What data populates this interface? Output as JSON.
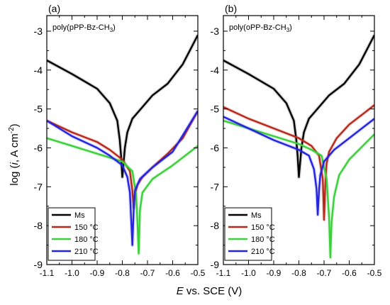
{
  "figure": {
    "y_axis_label": {
      "prefix": "log (",
      "italic": "i",
      "middle": ", A cm",
      "sup": "-2",
      "suffix": ")"
    },
    "x_axis_label": {
      "italic": "E",
      "rest": " vs. SCE (V)"
    }
  },
  "chart_data": [
    {
      "type": "line",
      "panel_label": "(a)",
      "title": {
        "prefix": "poly(pPP-Bz-CH",
        "sub": "3",
        "suffix": ")"
      },
      "xlim": [
        -1.1,
        -0.5
      ],
      "ylim": [
        -9,
        -2.6
      ],
      "x_ticks": [
        -1.1,
        -1.0,
        -0.9,
        -0.8,
        -0.7,
        -0.6,
        -0.5
      ],
      "x_tick_labels": [
        "-1.1",
        "-1.0",
        "-0.9",
        "-0.8",
        "-0.7",
        "-0.6",
        "-0.5"
      ],
      "y_ticks": [
        -9,
        -8,
        -7,
        -6,
        -5,
        -4,
        -3
      ],
      "y_tick_labels": [
        "-9",
        "-8",
        "-7",
        "-6",
        "-5",
        "-4",
        "-3"
      ],
      "legend_position": "bottom-left",
      "series": [
        {
          "name": "Ms",
          "color": "#000000",
          "x": [
            -1.1,
            -1.0,
            -0.9,
            -0.85,
            -0.82,
            -0.81,
            -0.805,
            -0.8,
            -0.79,
            -0.78,
            -0.76,
            -0.72,
            -0.68,
            -0.62,
            -0.56,
            -0.5
          ],
          "y": [
            -3.75,
            -4.1,
            -4.48,
            -4.85,
            -5.3,
            -5.8,
            -6.2,
            -6.75,
            -6.0,
            -5.6,
            -5.25,
            -4.95,
            -4.65,
            -4.35,
            -3.85,
            -3.1
          ]
        },
        {
          "name": "150 °C",
          "color": "#b5291c",
          "x": [
            -1.1,
            -1.0,
            -0.9,
            -0.85,
            -0.8,
            -0.77,
            -0.76,
            -0.755,
            -0.75,
            -0.74,
            -0.72,
            -0.68,
            -0.62,
            -0.56,
            -0.5
          ],
          "y": [
            -5.3,
            -5.6,
            -5.85,
            -6.05,
            -6.3,
            -6.6,
            -7.1,
            -7.55,
            -7.2,
            -6.95,
            -6.75,
            -6.5,
            -6.15,
            -5.75,
            -5.05
          ]
        },
        {
          "name": "180 °C",
          "color": "#3ccf3c",
          "x": [
            -1.1,
            -1.0,
            -0.9,
            -0.8,
            -0.76,
            -0.745,
            -0.74,
            -0.735,
            -0.73,
            -0.72,
            -0.68,
            -0.6,
            -0.5
          ],
          "y": [
            -5.75,
            -5.95,
            -6.15,
            -6.35,
            -6.6,
            -7.2,
            -7.9,
            -8.72,
            -7.6,
            -7.15,
            -6.8,
            -6.45,
            -5.95
          ]
        },
        {
          "name": "210 °C",
          "color": "#2323e0",
          "x": [
            -1.1,
            -1.0,
            -0.9,
            -0.85,
            -0.8,
            -0.78,
            -0.77,
            -0.765,
            -0.76,
            -0.755,
            -0.75,
            -0.73,
            -0.68,
            -0.6,
            -0.5
          ],
          "y": [
            -5.3,
            -5.7,
            -6.0,
            -6.2,
            -6.45,
            -6.75,
            -7.15,
            -7.8,
            -8.5,
            -7.6,
            -7.1,
            -6.8,
            -6.5,
            -6.1,
            -5.05
          ]
        }
      ]
    },
    {
      "type": "line",
      "panel_label": "(b)",
      "title": {
        "prefix": "poly(oPP-Bz-CH",
        "sub": "3",
        "suffix": ")"
      },
      "xlim": [
        -1.1,
        -0.5
      ],
      "ylim": [
        -9,
        -2.6
      ],
      "x_ticks": [
        -1.1,
        -1.0,
        -0.9,
        -0.8,
        -0.7,
        -0.6,
        -0.5
      ],
      "x_tick_labels": [
        "-1.1",
        "-1.0",
        "-0.9",
        "-0.8",
        "-0.7",
        "-0.6",
        "-0.5"
      ],
      "y_ticks": [
        -9,
        -8,
        -7,
        -6,
        -5,
        -4,
        -3
      ],
      "y_tick_labels": [
        "-9",
        "-8",
        "-7",
        "-6",
        "-5",
        "-4",
        "-3"
      ],
      "legend_position": "bottom-left",
      "series": [
        {
          "name": "Ms",
          "color": "#000000",
          "x": [
            -1.1,
            -1.0,
            -0.9,
            -0.85,
            -0.82,
            -0.81,
            -0.805,
            -0.8,
            -0.79,
            -0.78,
            -0.76,
            -0.72,
            -0.68,
            -0.62,
            -0.56,
            -0.5
          ],
          "y": [
            -3.75,
            -4.1,
            -4.48,
            -4.85,
            -5.3,
            -5.8,
            -6.2,
            -6.75,
            -6.0,
            -5.6,
            -5.25,
            -4.95,
            -4.65,
            -4.35,
            -3.85,
            -3.1
          ]
        },
        {
          "name": "150 °C",
          "color": "#b5291c",
          "x": [
            -1.1,
            -1.0,
            -0.9,
            -0.8,
            -0.75,
            -0.72,
            -0.705,
            -0.7,
            -0.695,
            -0.69,
            -0.68,
            -0.65,
            -0.6,
            -0.55,
            -0.5
          ],
          "y": [
            -4.95,
            -5.25,
            -5.5,
            -5.75,
            -5.95,
            -6.2,
            -6.8,
            -7.85,
            -6.9,
            -6.4,
            -6.1,
            -5.75,
            -5.4,
            -5.15,
            -4.9
          ]
        },
        {
          "name": "180 °C",
          "color": "#3ccf3c",
          "x": [
            -1.1,
            -1.0,
            -0.9,
            -0.8,
            -0.75,
            -0.71,
            -0.69,
            -0.68,
            -0.675,
            -0.67,
            -0.66,
            -0.64,
            -0.6,
            -0.5
          ],
          "y": [
            -5.3,
            -5.5,
            -5.7,
            -5.9,
            -6.05,
            -6.2,
            -6.8,
            -7.8,
            -8.82,
            -7.9,
            -7.25,
            -6.7,
            -6.3,
            -5.65
          ]
        },
        {
          "name": "210 °C",
          "color": "#2323e0",
          "x": [
            -1.1,
            -1.0,
            -0.9,
            -0.8,
            -0.76,
            -0.74,
            -0.73,
            -0.725,
            -0.72,
            -0.715,
            -0.7,
            -0.66,
            -0.6,
            -0.5
          ],
          "y": [
            -5.2,
            -5.5,
            -5.8,
            -6.05,
            -6.2,
            -6.55,
            -7.05,
            -7.72,
            -7.1,
            -6.7,
            -6.35,
            -6.05,
            -5.75,
            -5.25
          ]
        }
      ]
    }
  ]
}
